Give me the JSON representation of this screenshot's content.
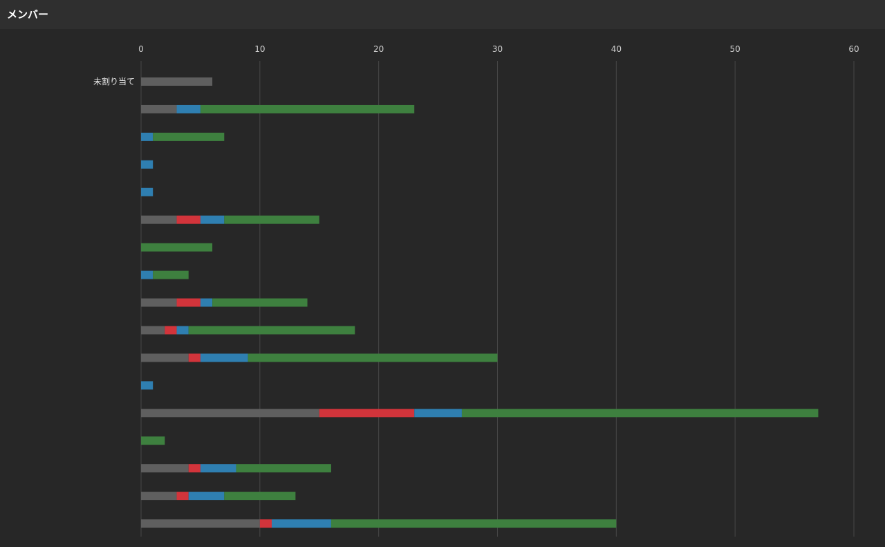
{
  "header": {
    "title": "メンバー"
  },
  "colors": {
    "background": "#272727",
    "header": "#2f2f2f",
    "grid": "#474747",
    "series": [
      "#5f5f5f",
      "#d2343b",
      "#2f7fb1",
      "#3e803f"
    ]
  },
  "chart_data": {
    "type": "bar",
    "orientation": "horizontal",
    "stacked": true,
    "x_axis_position": "top",
    "grid": true,
    "xlim": [
      0,
      60
    ],
    "xticks": [
      0,
      10,
      20,
      30,
      40,
      50,
      60
    ],
    "categories": [
      "未割り当て",
      "",
      "",
      "",
      "",
      "",
      "",
      "",
      "",
      "",
      "",
      "",
      "",
      "",
      "",
      "",
      ""
    ],
    "series": [
      {
        "values": [
          6,
          3,
          0,
          0,
          0,
          3,
          0,
          0,
          3,
          2,
          4,
          0,
          15,
          0,
          4,
          3,
          10
        ]
      },
      {
        "values": [
          0,
          0,
          0,
          0,
          0,
          2,
          0,
          0,
          2,
          1,
          1,
          0,
          8,
          0,
          1,
          1,
          1
        ]
      },
      {
        "values": [
          0,
          2,
          1,
          1,
          1,
          2,
          0,
          1,
          1,
          1,
          4,
          1,
          4,
          0,
          3,
          3,
          5
        ]
      },
      {
        "values": [
          0,
          18,
          6,
          0,
          0,
          8,
          6,
          3,
          8,
          14,
          21,
          0,
          30,
          2,
          8,
          6,
          24
        ]
      }
    ]
  }
}
